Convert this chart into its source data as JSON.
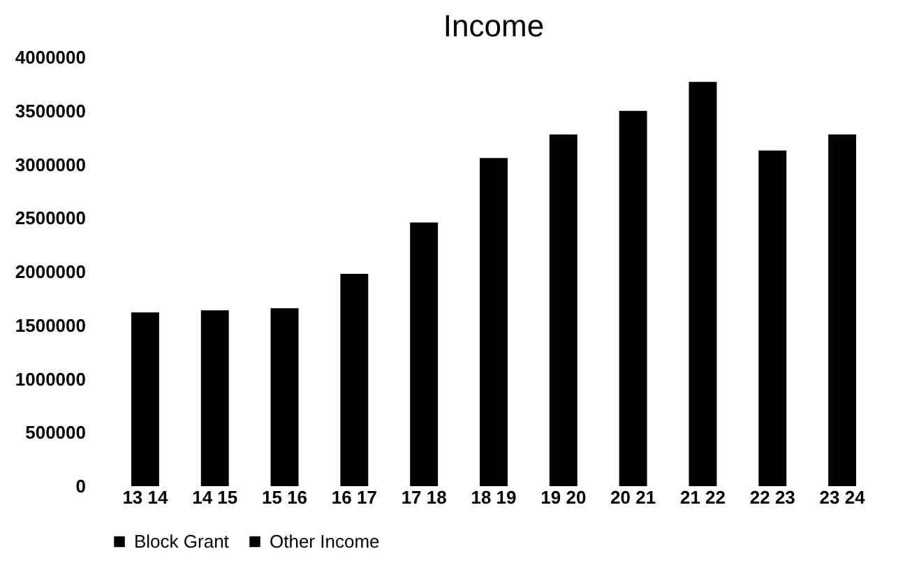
{
  "chart_data": {
    "type": "bar",
    "title": "Income",
    "categories": [
      "13 14",
      "14 15",
      "15 16",
      "16 17",
      "17 18",
      "18 19",
      "19 20",
      "20 21",
      "21 22",
      "22 23",
      "23 24"
    ],
    "series": [
      {
        "name": "Block Grant",
        "color": "#000000",
        "values": [
          1620000,
          1640000,
          1660000,
          1980000,
          2460000,
          3060000,
          3280000,
          3500000,
          3770000,
          3130000,
          3280000
        ]
      },
      {
        "name": "Other Income",
        "color": "#000000",
        "values": [
          null,
          null,
          null,
          null,
          null,
          null,
          null,
          null,
          null,
          null,
          null
        ]
      }
    ],
    "ylim": [
      0,
      4000000
    ],
    "yticks": [
      0,
      500000,
      1000000,
      1500000,
      2000000,
      2500000,
      3000000,
      3500000,
      4000000
    ],
    "grid": false,
    "legend": "bottom"
  }
}
